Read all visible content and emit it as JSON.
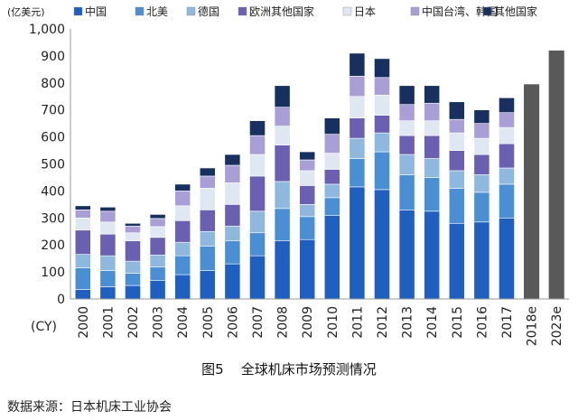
{
  "chart_data": {
    "type": "bar",
    "stacked": true,
    "unit_label": "(亿美元)",
    "x_prefix_label": "(CY)",
    "categories": [
      "2000",
      "2001",
      "2002",
      "2003",
      "2004",
      "2005",
      "2006",
      "2007",
      "2008",
      "2009",
      "2010",
      "2011",
      "2012",
      "2013",
      "2014",
      "2015",
      "2016",
      "2017",
      "2018e",
      "2023e"
    ],
    "ylim": [
      0,
      1000
    ],
    "yticks": [
      "0",
      "100",
      "200",
      "300",
      "400",
      "500",
      "600",
      "700",
      "800",
      "900",
      "1,000"
    ],
    "ytick_values": [
      0,
      100,
      200,
      300,
      400,
      500,
      600,
      700,
      800,
      900,
      1000
    ],
    "grid": false,
    "legend_position": "top",
    "series": [
      {
        "name": "中国",
        "color": "#1f5fbf",
        "values": [
          35,
          45,
          50,
          68,
          90,
          105,
          130,
          160,
          215,
          220,
          310,
          415,
          405,
          330,
          325,
          280,
          285,
          300,
          null,
          null
        ]
      },
      {
        "name": "北美",
        "color": "#4a8fd4",
        "values": [
          80,
          60,
          45,
          50,
          70,
          90,
          85,
          85,
          120,
          85,
          65,
          105,
          140,
          130,
          125,
          130,
          110,
          125,
          null,
          null
        ]
      },
      {
        "name": "德国",
        "color": "#8fb8de",
        "values": [
          50,
          55,
          45,
          45,
          50,
          55,
          55,
          80,
          100,
          45,
          50,
          75,
          70,
          75,
          70,
          65,
          65,
          60,
          null,
          null
        ]
      },
      {
        "name": "欧洲其他国家",
        "color": "#6a5fb0",
        "values": [
          90,
          80,
          75,
          65,
          80,
          80,
          80,
          130,
          135,
          70,
          55,
          75,
          65,
          70,
          85,
          75,
          75,
          90,
          null,
          null
        ]
      },
      {
        "name": "日本",
        "color": "#dfe7f2",
        "values": [
          45,
          45,
          30,
          40,
          55,
          80,
          80,
          80,
          70,
          55,
          60,
          80,
          75,
          55,
          55,
          65,
          60,
          60,
          null,
          null
        ]
      },
      {
        "name": "中国台湾、韩国",
        "color": "#a99fd6",
        "values": [
          30,
          40,
          25,
          30,
          55,
          45,
          65,
          70,
          70,
          40,
          70,
          75,
          65,
          60,
          65,
          50,
          55,
          55,
          null,
          null
        ]
      },
      {
        "name": "其他国家",
        "color": "#17305f",
        "values": [
          15,
          15,
          10,
          15,
          25,
          30,
          40,
          55,
          80,
          30,
          60,
          85,
          70,
          70,
          65,
          65,
          50,
          55,
          null,
          null
        ]
      }
    ],
    "totals_only": [
      {
        "category": "2018e",
        "value": 795,
        "color": "#595959"
      },
      {
        "category": "2023e",
        "value": 920,
        "color": "#595959"
      }
    ],
    "figure_label": "图5",
    "title": "全球机床市场预测情况",
    "source": "数据来源：日本机床工业协会"
  }
}
